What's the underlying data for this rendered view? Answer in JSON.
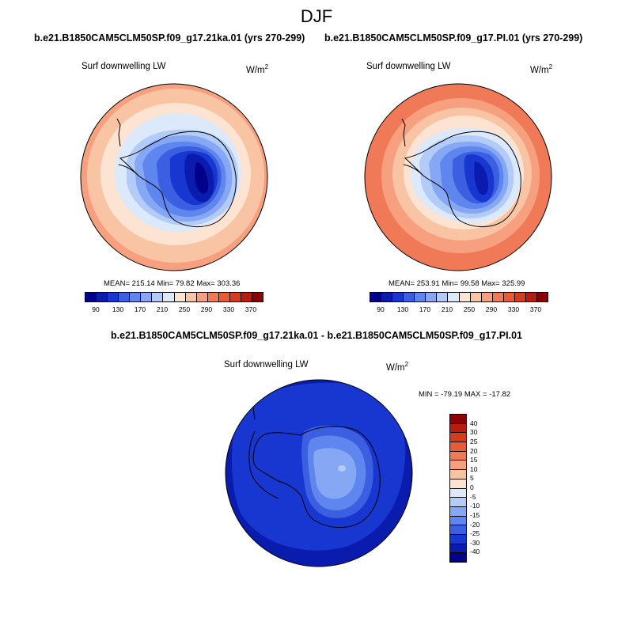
{
  "figure": {
    "season": "DJF"
  },
  "panels": [
    {
      "title": "b.e21.B1850CAM5CLM50SP.f09_g17.21ka.01 (yrs 270-299)",
      "variable": "Surf downwelling LW",
      "units": "W/m",
      "units_exp": "2",
      "stats": "MEAN= 215.14  Min=  79.82  Max= 303.36"
    },
    {
      "title": "b.e21.B1850CAM5CLM50SP.f09_g17.PI.01 (yrs 270-299)",
      "variable": "Surf downwelling LW",
      "units": "W/m",
      "units_exp": "2",
      "stats": "MEAN= 253.91  Min=  99.58  Max= 325.99"
    },
    {
      "title": "b.e21.B1850CAM5CLM50SP.f09_g17.21ka.01 - b.e21.B1850CAM5CLM50SP.f09_g17.PI.01",
      "variable": "Surf downwelling LW",
      "units": "W/m",
      "units_exp": "2",
      "stats": "MIN = -79.19 MAX = -17.82"
    }
  ],
  "chart_data": [
    {
      "type": "heatmap",
      "projection": "south-polar-stereographic",
      "title": "b.e21.B1850CAM5CLM50SP.f09_g17.21ka.01 (yrs 270-299)",
      "variable": "Surf downwelling LW",
      "units": "W/m2",
      "mean": 215.14,
      "min": 79.82,
      "max": 303.36,
      "colorbar_levels": [
        70,
        90,
        110,
        130,
        150,
        170,
        190,
        210,
        230,
        250,
        270,
        290,
        310,
        330,
        350,
        370
      ],
      "colorbar_labels": [
        "90",
        "130",
        "170",
        "210",
        "250",
        "290",
        "330",
        "370"
      ],
      "colors": [
        "#00008b",
        "#0a1cae",
        "#1737d0",
        "#3b5fe0",
        "#5f85ee",
        "#86a8f4",
        "#b3cbf7",
        "#dce9fa",
        "#fde4d2",
        "#f9c4a4",
        "#f6a080",
        "#f07a58",
        "#e85a38",
        "#d83a20",
        "#b81c10",
        "#8b0000"
      ]
    },
    {
      "type": "heatmap",
      "projection": "south-polar-stereographic",
      "title": "b.e21.B1850CAM5CLM50SP.f09_g17.PI.01 (yrs 270-299)",
      "variable": "Surf downwelling LW",
      "units": "W/m2",
      "mean": 253.91,
      "min": 99.58,
      "max": 325.99,
      "colorbar_levels": [
        70,
        90,
        110,
        130,
        150,
        170,
        190,
        210,
        230,
        250,
        270,
        290,
        310,
        330,
        350,
        370
      ],
      "colorbar_labels": [
        "90",
        "130",
        "170",
        "210",
        "250",
        "290",
        "330",
        "370"
      ],
      "colors": [
        "#00008b",
        "#0a1cae",
        "#1737d0",
        "#3b5fe0",
        "#5f85ee",
        "#86a8f4",
        "#b3cbf7",
        "#dce9fa",
        "#fde4d2",
        "#f9c4a4",
        "#f6a080",
        "#f07a58",
        "#e85a38",
        "#d83a20",
        "#b81c10",
        "#8b0000"
      ]
    },
    {
      "type": "heatmap",
      "projection": "south-polar-stereographic",
      "title": "b.e21.B1850CAM5CLM50SP.f09_g17.21ka.01 - b.e21.B1850CAM5CLM50SP.f09_g17.PI.01",
      "variable": "Surf downwelling LW",
      "units": "W/m2",
      "min": -79.19,
      "max": -17.82,
      "colorbar_labels": [
        "40",
        "30",
        "25",
        "20",
        "15",
        "10",
        "5",
        "0",
        "-5",
        "-10",
        "-15",
        "-20",
        "-25",
        "-30",
        "-40"
      ],
      "colors": [
        "#8b0000",
        "#b81c10",
        "#d83a20",
        "#e85a38",
        "#f07a58",
        "#f6a080",
        "#f9c4a4",
        "#fde4d2",
        "#dce9fa",
        "#b3cbf7",
        "#86a8f4",
        "#5f85ee",
        "#3b5fe0",
        "#1737d0",
        "#0a1cae",
        "#00008b"
      ]
    }
  ]
}
